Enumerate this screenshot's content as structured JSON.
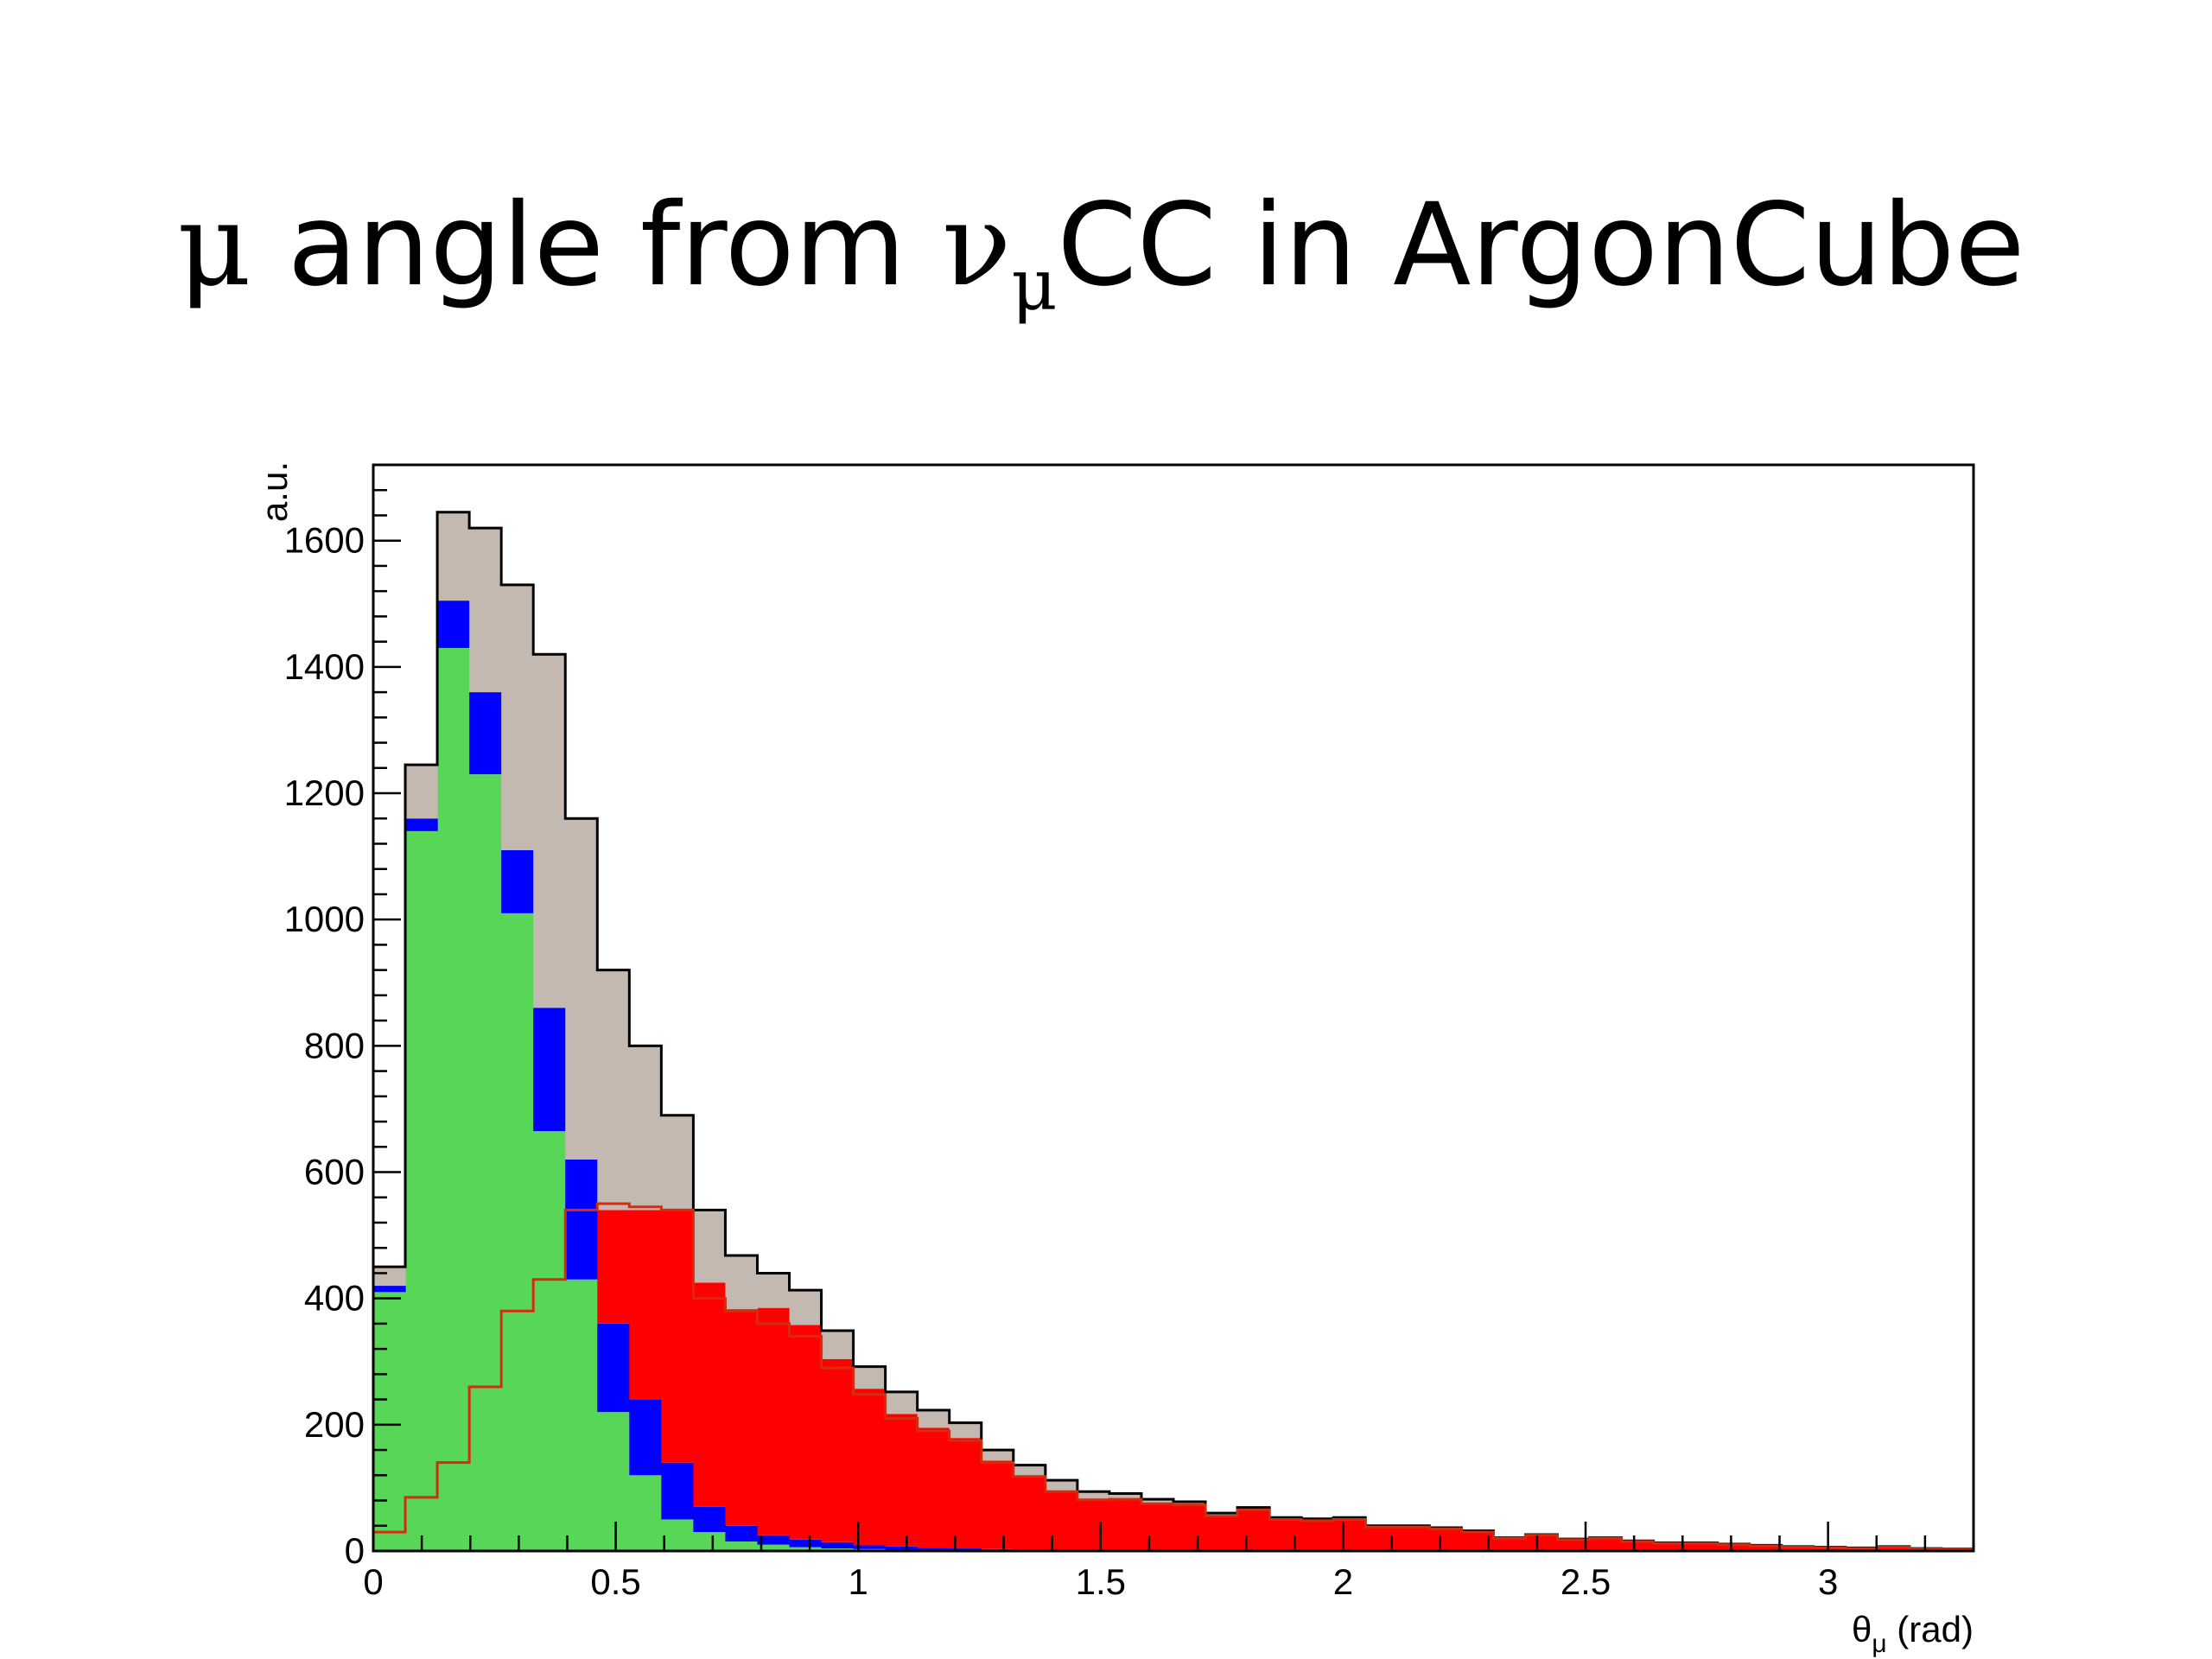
{
  "slide": {
    "title_mu": "μ",
    "title_main": " angle from ",
    "title_nu": "ν",
    "title_nu_sub": "μ",
    "title_end": "CC in ArgonCube"
  },
  "chart_data": {
    "type": "bar",
    "subtype": "stacked-histogram",
    "xlabel": "θμ (rad)",
    "ylabel": "a.u.",
    "xlim": [
      0,
      3.3
    ],
    "ylim": [
      0,
      1720
    ],
    "bin_width": 0.066,
    "x_ticks": [
      0,
      0.5,
      1,
      1.5,
      2,
      2.5,
      3
    ],
    "x_tick_labels": [
      "0",
      "0.5",
      "1",
      "1.5",
      "2",
      "2.5",
      "3"
    ],
    "y_ticks": [
      0,
      200,
      400,
      600,
      800,
      1000,
      1200,
      1400,
      1600
    ],
    "y_tick_labels": [
      "0",
      "200",
      "400",
      "600",
      "800",
      "1000",
      "1200",
      "1400",
      "1600"
    ],
    "grid": false,
    "colors": {
      "green": "#57d657",
      "blue": "#0000ff",
      "red": "#ff0000",
      "gray": "#c3b9b1",
      "outline": "#000000",
      "red_line": "#d62b0c"
    },
    "series": [
      {
        "color": "#57d657",
        "values": [
          410,
          1140,
          1430,
          1230,
          1010,
          665,
          430,
          220,
          120,
          50,
          30,
          15,
          10,
          6,
          4,
          3,
          2,
          1,
          1,
          0,
          0,
          0,
          0,
          0,
          0,
          0,
          0,
          0,
          0,
          0,
          0,
          0,
          0,
          0,
          0,
          0,
          0,
          0,
          0,
          0,
          0,
          0,
          0,
          0,
          0,
          0,
          0,
          0,
          0,
          0
        ]
      },
      {
        "color": "#0000ff",
        "values": [
          10,
          20,
          75,
          130,
          100,
          195,
          190,
          140,
          120,
          90,
          40,
          25,
          15,
          12,
          10,
          6,
          5,
          4,
          3,
          3,
          2,
          2,
          1,
          1,
          1,
          0,
          0,
          0,
          0,
          0,
          0,
          0,
          0,
          0,
          0,
          0,
          0,
          0,
          0,
          0,
          0,
          0,
          0,
          0,
          0,
          0,
          0,
          0,
          0,
          0
        ]
      },
      {
        "color": "#ff0000",
        "values": [
          0,
          0,
          0,
          0,
          0,
          0,
          0,
          180,
          300,
          400,
          355,
          343,
          360,
          340,
          290,
          248,
          210,
          190,
          175,
          140,
          118,
          94,
          81,
          82,
          75,
          73,
          55,
          65,
          50,
          48,
          50,
          38,
          38,
          35,
          30,
          20,
          25,
          18,
          20,
          15,
          12,
          12,
          10,
          8,
          6,
          5,
          4,
          6,
          3,
          2
        ]
      },
      {
        "color": "#c3b9b1",
        "values": [
          30,
          85,
          140,
          260,
          420,
          560,
          540,
          380,
          260,
          150,
          115,
          85,
          55,
          55,
          45,
          35,
          35,
          28,
          24,
          17,
          16,
          16,
          12,
          8,
          6,
          5,
          5,
          4,
          3,
          3,
          3,
          2,
          2,
          2,
          2,
          1,
          1,
          1,
          1,
          1,
          1,
          1,
          1,
          1,
          1,
          1,
          1,
          1,
          1,
          1
        ]
      },
      {
        "type": "step-line",
        "color": "#d62b0c",
        "values": [
          30,
          85,
          140,
          260,
          380,
          430,
          540,
          550,
          545,
          540,
          400,
          380,
          360,
          340,
          290,
          248,
          210,
          190,
          175,
          140,
          118,
          94,
          81,
          82,
          75,
          73,
          55,
          65,
          50,
          48,
          50,
          38,
          38,
          35,
          30,
          20,
          25,
          18,
          20,
          15,
          12,
          12,
          10,
          8,
          6,
          5,
          4,
          6,
          3,
          2
        ]
      }
    ]
  }
}
